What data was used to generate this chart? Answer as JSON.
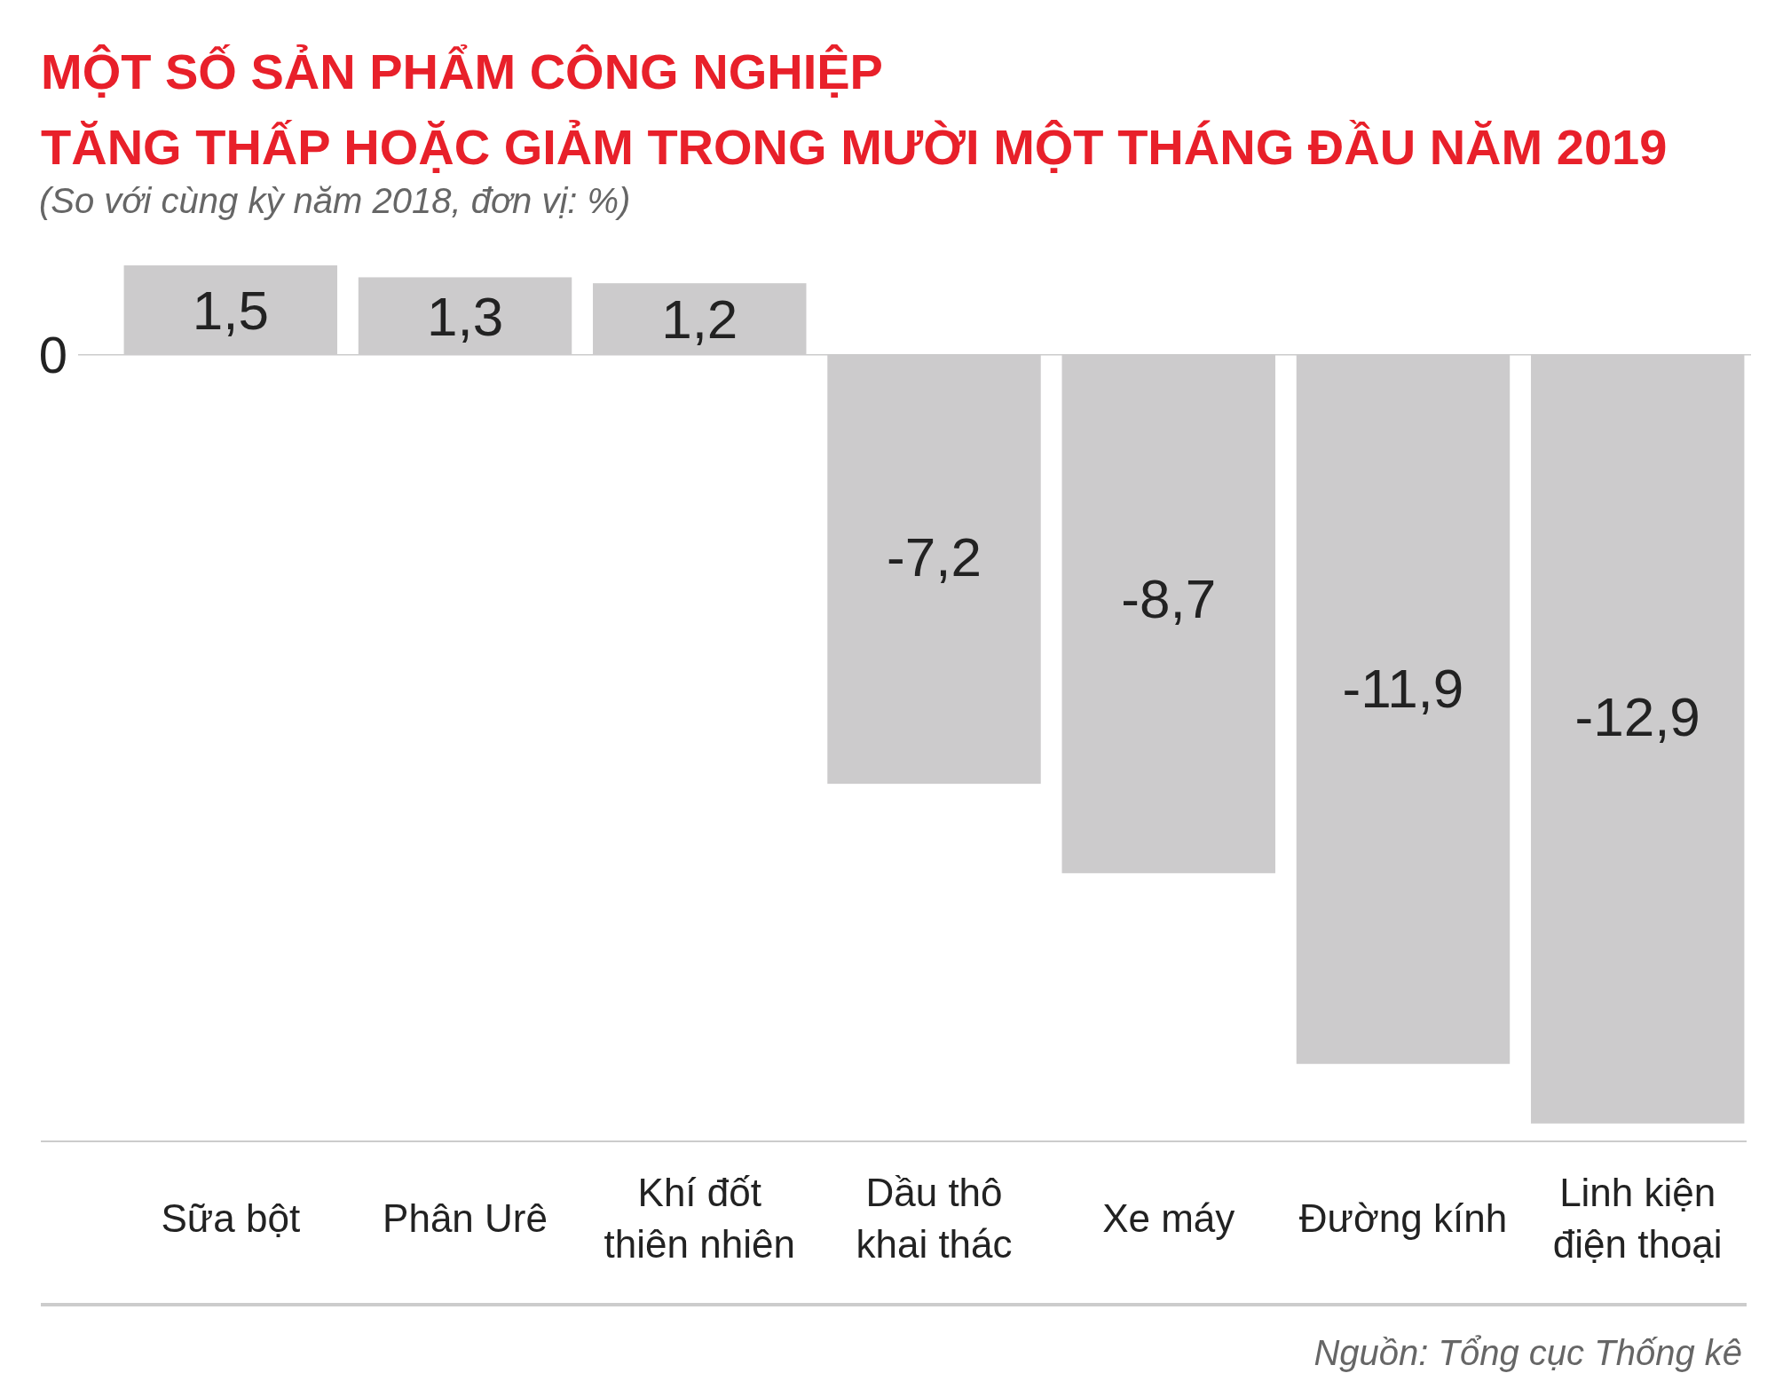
{
  "chart_data": {
    "type": "bar",
    "title": "MỘT SỐ SẢN PHẨM CÔNG NGHIỆP\nTĂNG THẤP HOẶC GIẢM TRONG MƯỜI MỘT THÁNG ĐẦU NĂM 2019",
    "subtitle": "(So với cùng kỳ năm 2018, đơn vị: %)",
    "categories": [
      "Sữa bột",
      "Phân Urê",
      "Khí đốt thiên nhiên",
      "Dầu thô khai thác",
      "Xe máy",
      "Đường kính",
      "Linh kiện điện thoại"
    ],
    "values": [
      1.5,
      1.3,
      1.2,
      -7.2,
      -8.7,
      -11.9,
      -12.9
    ],
    "ylim": [
      -13.2,
      1.5
    ],
    "value_labels": [
      "1,5",
      "1,3",
      "1,2",
      "-7,2",
      "-8,7",
      "-11,9",
      "-12,9"
    ],
    "color": "#cccbcc",
    "annotations": [
      "0",
      "Nguồn: Tổng cục Thống kê"
    ]
  }
}
